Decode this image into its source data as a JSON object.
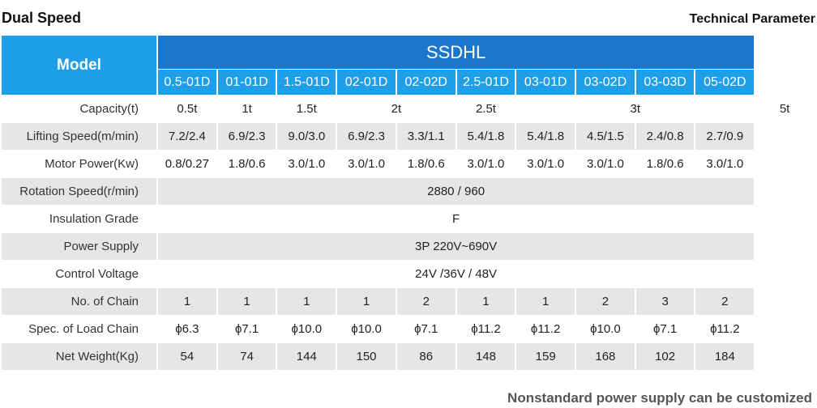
{
  "header": {
    "title": "Dual Speed",
    "subtitle": "Technical Parameter"
  },
  "table": {
    "model_label": "Model",
    "series_name": "SSDHL",
    "models": [
      "0.5-01D",
      "01-01D",
      "1.5-01D",
      "02-01D",
      "02-02D",
      "2.5-01D",
      "03-01D",
      "03-02D",
      "03-03D",
      "05-02D"
    ],
    "rows": [
      {
        "label": "Capacity(t)",
        "cells": [
          "0.5t",
          "1t",
          "1.5t",
          "2t",
          "2.5t",
          "3t",
          "5t"
        ]
      },
      {
        "label": "Lifting Speed(m/min)",
        "cells": [
          "7.2/2.4",
          "6.9/2.3",
          "9.0/3.0",
          "6.9/2.3",
          "3.3/1.1",
          "5.4/1.8",
          "5.4/1.8",
          "4.5/1.5",
          "2.4/0.8",
          "2.7/0.9"
        ]
      },
      {
        "label": "Motor Power(Kw)",
        "cells": [
          "0.8/0.27",
          "1.8/0.6",
          "3.0/1.0",
          "3.0/1.0",
          "1.8/0.6",
          "3.0/1.0",
          "3.0/1.0",
          "3.0/1.0",
          "1.8/0.6",
          "3.0/1.0"
        ]
      },
      {
        "label": "Rotation Speed(r/min)",
        "cells": [
          "2880 / 960"
        ]
      },
      {
        "label": "Insulation Grade",
        "cells": [
          "F"
        ]
      },
      {
        "label": "Power Supply",
        "cells": [
          "3P 220V~690V"
        ]
      },
      {
        "label": "Control Voltage",
        "cells": [
          "24V /36V / 48V"
        ]
      },
      {
        "label": "No. of Chain",
        "cells": [
          "1",
          "1",
          "1",
          "1",
          "2",
          "1",
          "1",
          "2",
          "3",
          "2"
        ]
      },
      {
        "label": "Spec. of Load Chain",
        "cells": [
          "ϕ6.3",
          "ϕ7.1",
          "ϕ10.0",
          "ϕ10.0",
          "ϕ7.1",
          "ϕ11.2",
          "ϕ11.2",
          "ϕ10.0",
          "ϕ7.1",
          "ϕ11.2"
        ]
      },
      {
        "label": "Net Weight(Kg)",
        "cells": [
          "54",
          "74",
          "144",
          "150",
          "86",
          "148",
          "159",
          "168",
          "102",
          "184"
        ]
      }
    ]
  },
  "footer": {
    "note": "Nonstandard power  supply can be customized"
  }
}
